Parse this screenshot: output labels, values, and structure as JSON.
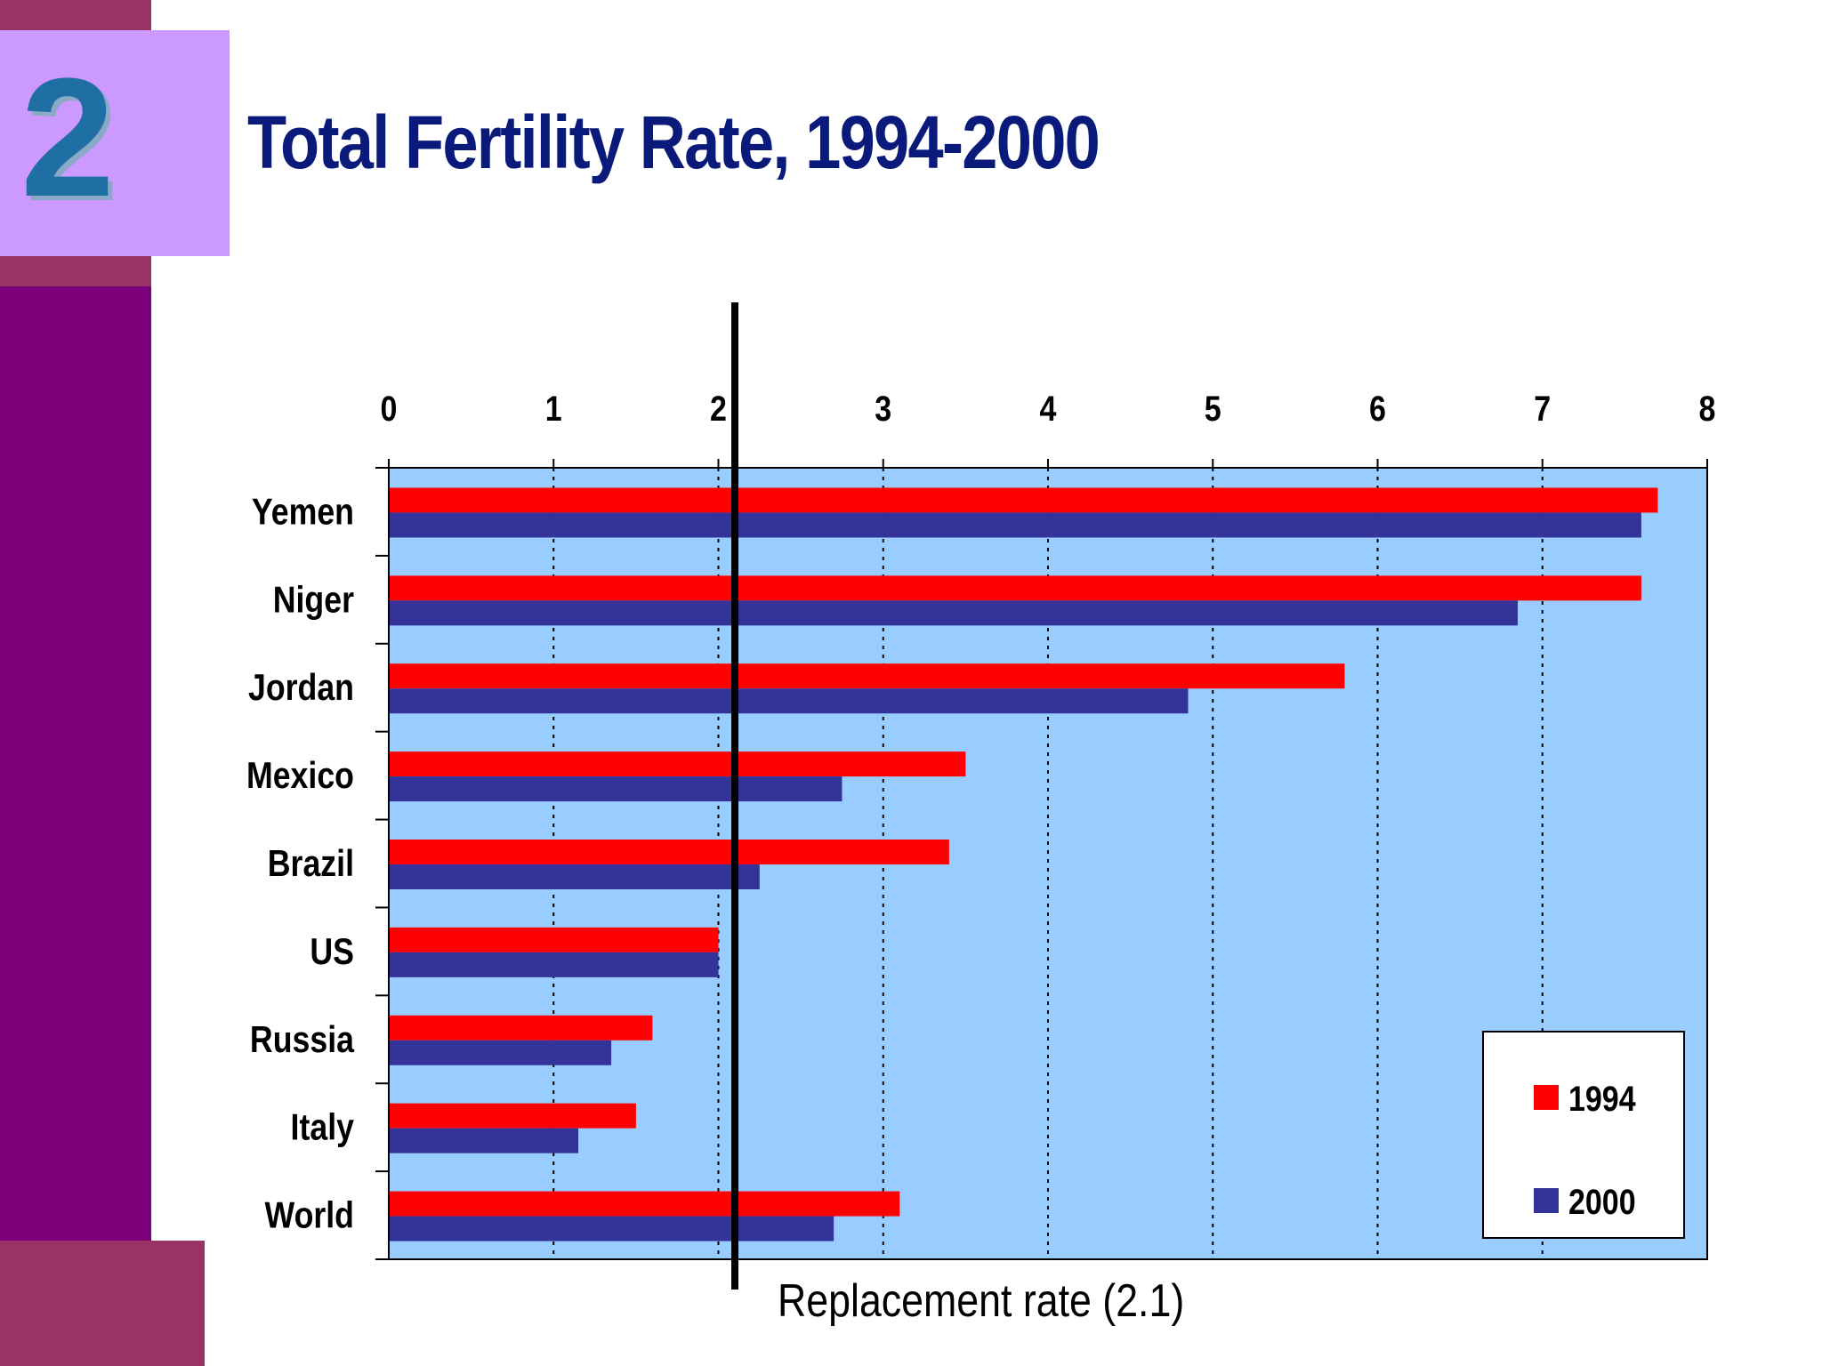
{
  "slide": {
    "number": "2",
    "title": "Total Fertility Rate, 1994-2000"
  },
  "colors": {
    "sidebar": "#7b0079",
    "accent_band": "#993366",
    "number_box": "#cc99ff",
    "number_text": "#1f6fa5",
    "title_text": "#0a1a7a",
    "plot_background": "#99ccff",
    "series_1994": "#ff0000",
    "series_2000": "#333399"
  },
  "chart_data": {
    "type": "bar",
    "orientation": "horizontal",
    "categories": [
      "Yemen",
      "Niger",
      "Jordan",
      "Mexico",
      "Brazil",
      "US",
      "Russia",
      "Italy",
      "World"
    ],
    "series": [
      {
        "name": "1994",
        "color": "#ff0000",
        "values": [
          7.7,
          7.6,
          5.8,
          3.5,
          3.4,
          2.0,
          1.6,
          1.5,
          3.1
        ]
      },
      {
        "name": "2000",
        "color": "#333399",
        "values": [
          7.6,
          6.85,
          4.85,
          2.75,
          2.25,
          2.0,
          1.35,
          1.15,
          2.7
        ]
      }
    ],
    "xlim": [
      0,
      8
    ],
    "xticks": [
      "0",
      "1",
      "2",
      "3",
      "4",
      "5",
      "6",
      "7",
      "8"
    ],
    "x_axis_position": "top",
    "grid": "vertical dotted",
    "legend_position": "bottom-right",
    "reference_line": {
      "value": 2.1,
      "label": "Replacement rate (2.1)"
    }
  }
}
